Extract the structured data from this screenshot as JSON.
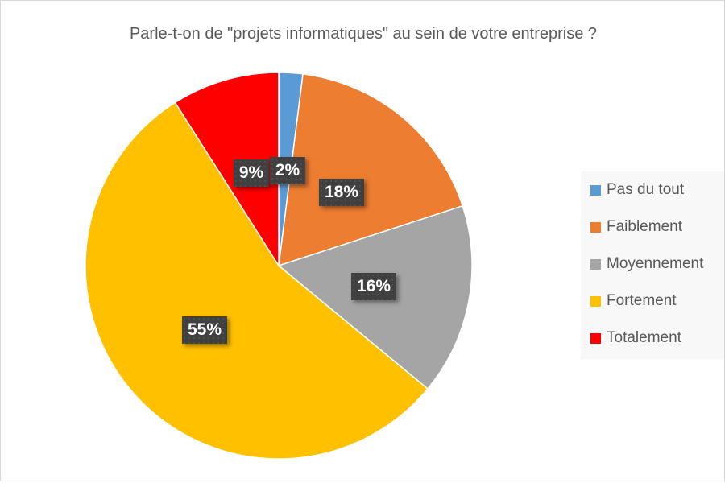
{
  "chart_data": {
    "type": "pie",
    "title": "Parle-t-on de \"projets informatiques\" au sein de votre entreprise ?",
    "categories": [
      "Pas du tout",
      "Faiblement",
      "Moyennement",
      "Fortement",
      "Totalement"
    ],
    "values": [
      2,
      18,
      16,
      55,
      9
    ],
    "data_labels": [
      "2%",
      "18%",
      "16%",
      "55%",
      "9%"
    ],
    "colors": [
      "#5b9bd5",
      "#ed7d31",
      "#a5a5a5",
      "#ffc000",
      "#ff0000"
    ],
    "start_angle": "top, clockwise",
    "legend_position": "right"
  }
}
